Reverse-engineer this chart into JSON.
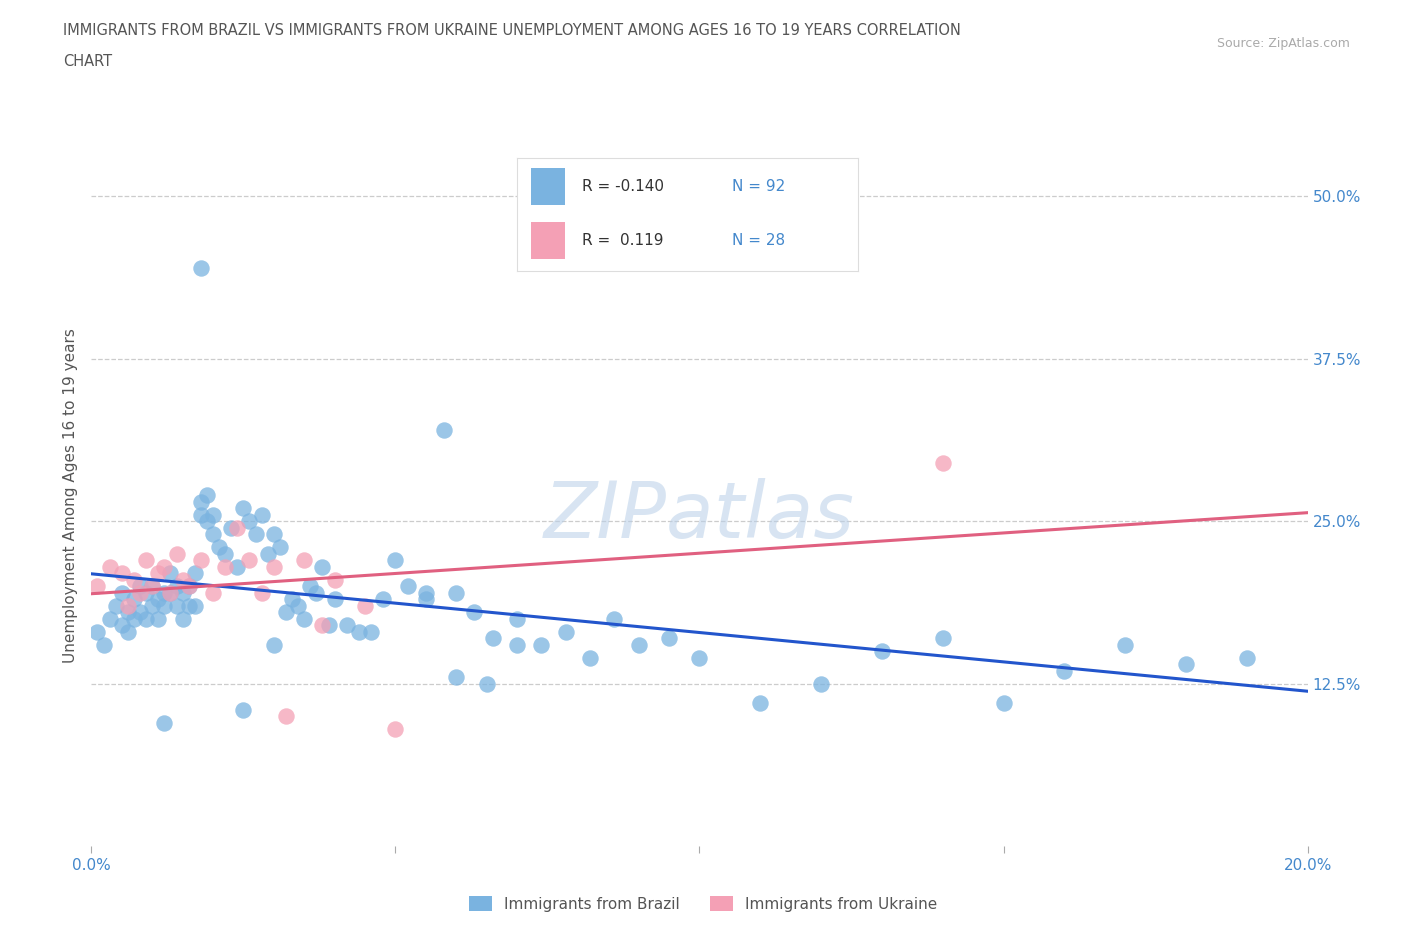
{
  "title_line1": "IMMIGRANTS FROM BRAZIL VS IMMIGRANTS FROM UKRAINE UNEMPLOYMENT AMONG AGES 16 TO 19 YEARS CORRELATION",
  "title_line2": "CHART",
  "source": "Source: ZipAtlas.com",
  "ylabel": "Unemployment Among Ages 16 to 19 years",
  "xlim": [
    0.0,
    0.2
  ],
  "ylim": [
    0.0,
    0.54
  ],
  "brazil_color": "#7ab3e0",
  "ukraine_color": "#f4a0b5",
  "brazil_line_color": "#2255cc",
  "ukraine_line_color": "#e06080",
  "watermark": "ZIPatlas",
  "background_color": "#ffffff",
  "grid_color": "#cccccc",
  "title_color": "#555555",
  "axis_label_color": "#555555",
  "tick_color": "#4488cc",
  "brazil_scatter_x": [
    0.001,
    0.002,
    0.003,
    0.004,
    0.005,
    0.005,
    0.006,
    0.006,
    0.007,
    0.007,
    0.008,
    0.008,
    0.009,
    0.009,
    0.01,
    0.01,
    0.011,
    0.011,
    0.012,
    0.012,
    0.013,
    0.013,
    0.014,
    0.014,
    0.015,
    0.015,
    0.016,
    0.016,
    0.017,
    0.017,
    0.018,
    0.018,
    0.019,
    0.019,
    0.02,
    0.02,
    0.021,
    0.022,
    0.023,
    0.024,
    0.025,
    0.026,
    0.027,
    0.028,
    0.029,
    0.03,
    0.031,
    0.032,
    0.033,
    0.034,
    0.035,
    0.036,
    0.037,
    0.038,
    0.039,
    0.04,
    0.042,
    0.044,
    0.046,
    0.048,
    0.05,
    0.052,
    0.055,
    0.058,
    0.06,
    0.063,
    0.066,
    0.07,
    0.074,
    0.078,
    0.082,
    0.086,
    0.09,
    0.095,
    0.1,
    0.11,
    0.12,
    0.13,
    0.14,
    0.15,
    0.16,
    0.17,
    0.18,
    0.19,
    0.025,
    0.03,
    0.055,
    0.06,
    0.065,
    0.07,
    0.012,
    0.018
  ],
  "brazil_scatter_y": [
    0.165,
    0.155,
    0.175,
    0.185,
    0.195,
    0.17,
    0.18,
    0.165,
    0.175,
    0.19,
    0.2,
    0.18,
    0.195,
    0.175,
    0.185,
    0.2,
    0.19,
    0.175,
    0.195,
    0.185,
    0.21,
    0.195,
    0.185,
    0.2,
    0.195,
    0.175,
    0.185,
    0.2,
    0.21,
    0.185,
    0.265,
    0.255,
    0.27,
    0.25,
    0.255,
    0.24,
    0.23,
    0.225,
    0.245,
    0.215,
    0.26,
    0.25,
    0.24,
    0.255,
    0.225,
    0.24,
    0.23,
    0.18,
    0.19,
    0.185,
    0.175,
    0.2,
    0.195,
    0.215,
    0.17,
    0.19,
    0.17,
    0.165,
    0.165,
    0.19,
    0.22,
    0.2,
    0.19,
    0.32,
    0.195,
    0.18,
    0.16,
    0.175,
    0.155,
    0.165,
    0.145,
    0.175,
    0.155,
    0.16,
    0.145,
    0.11,
    0.125,
    0.15,
    0.16,
    0.11,
    0.135,
    0.155,
    0.14,
    0.145,
    0.105,
    0.155,
    0.195,
    0.13,
    0.125,
    0.155,
    0.095,
    0.445
  ],
  "ukraine_scatter_x": [
    0.001,
    0.003,
    0.005,
    0.006,
    0.007,
    0.008,
    0.009,
    0.01,
    0.011,
    0.012,
    0.013,
    0.014,
    0.015,
    0.016,
    0.018,
    0.02,
    0.022,
    0.024,
    0.026,
    0.028,
    0.03,
    0.032,
    0.035,
    0.038,
    0.04,
    0.045,
    0.05,
    0.14
  ],
  "ukraine_scatter_y": [
    0.2,
    0.215,
    0.21,
    0.185,
    0.205,
    0.195,
    0.22,
    0.2,
    0.21,
    0.215,
    0.195,
    0.225,
    0.205,
    0.2,
    0.22,
    0.195,
    0.215,
    0.245,
    0.22,
    0.195,
    0.215,
    0.1,
    0.22,
    0.17,
    0.205,
    0.185,
    0.09,
    0.295
  ]
}
